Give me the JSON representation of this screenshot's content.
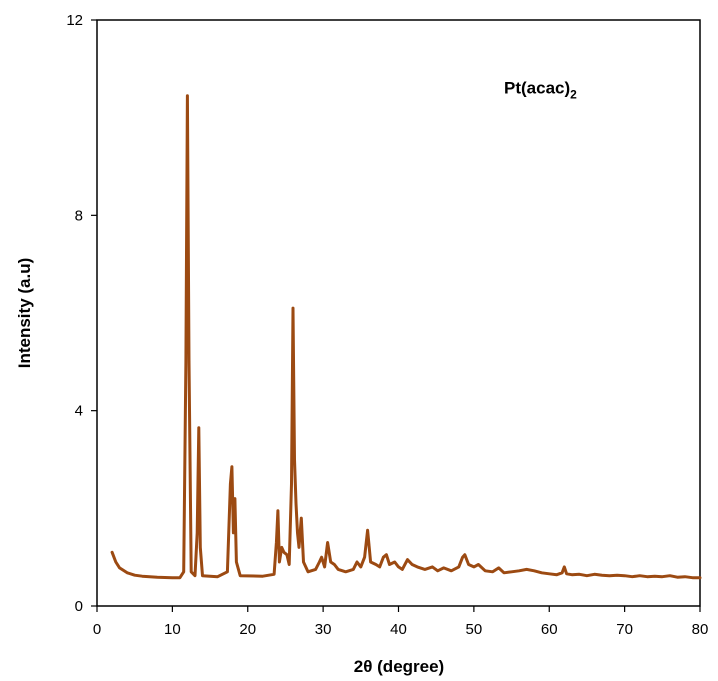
{
  "chart_data": {
    "type": "line",
    "title": "",
    "xlabel": "2θ (degree)",
    "ylabel": "Intensity (a.u)",
    "xlim": [
      0,
      80
    ],
    "ylim": [
      0,
      12
    ],
    "x_ticks": [
      "0",
      "10",
      "20",
      "30",
      "40",
      "50",
      "60",
      "70",
      "80"
    ],
    "y_ticks": [
      "0",
      "4",
      "8",
      "12"
    ],
    "grid": false,
    "legend": "none",
    "annotation": {
      "text": "Pt(acac)",
      "subscript": "2",
      "x": 54,
      "y": 10.5
    },
    "series": [
      {
        "color": "#9c4a12",
        "points": [
          [
            2.0,
            1.1
          ],
          [
            2.5,
            0.9
          ],
          [
            3.0,
            0.78
          ],
          [
            4.0,
            0.68
          ],
          [
            5.0,
            0.63
          ],
          [
            6.0,
            0.61
          ],
          [
            8.0,
            0.59
          ],
          [
            10.0,
            0.58
          ],
          [
            11.0,
            0.58
          ],
          [
            11.5,
            0.7
          ],
          [
            11.8,
            5.0
          ],
          [
            12.0,
            10.45
          ],
          [
            12.2,
            5.0
          ],
          [
            12.5,
            0.7
          ],
          [
            13.0,
            0.62
          ],
          [
            13.3,
            1.5
          ],
          [
            13.5,
            3.65
          ],
          [
            13.7,
            1.2
          ],
          [
            14.0,
            0.62
          ],
          [
            16.0,
            0.6
          ],
          [
            17.3,
            0.7
          ],
          [
            17.7,
            2.5
          ],
          [
            17.9,
            2.85
          ],
          [
            18.1,
            1.5
          ],
          [
            18.3,
            2.2
          ],
          [
            18.5,
            0.9
          ],
          [
            19.0,
            0.62
          ],
          [
            22.0,
            0.61
          ],
          [
            23.5,
            0.65
          ],
          [
            23.8,
            1.3
          ],
          [
            24.0,
            1.95
          ],
          [
            24.2,
            0.9
          ],
          [
            24.5,
            1.2
          ],
          [
            24.8,
            1.1
          ],
          [
            25.2,
            1.05
          ],
          [
            25.5,
            0.85
          ],
          [
            25.8,
            2.5
          ],
          [
            26.0,
            6.1
          ],
          [
            26.2,
            3.0
          ],
          [
            26.4,
            2.1
          ],
          [
            26.6,
            1.5
          ],
          [
            26.8,
            1.2
          ],
          [
            27.1,
            1.8
          ],
          [
            27.4,
            0.9
          ],
          [
            28.0,
            0.7
          ],
          [
            29.0,
            0.75
          ],
          [
            29.5,
            0.9
          ],
          [
            29.8,
            1.0
          ],
          [
            30.2,
            0.8
          ],
          [
            30.6,
            1.3
          ],
          [
            31.0,
            0.9
          ],
          [
            31.5,
            0.85
          ],
          [
            32.0,
            0.75
          ],
          [
            33.0,
            0.7
          ],
          [
            34.0,
            0.75
          ],
          [
            34.5,
            0.9
          ],
          [
            35.0,
            0.8
          ],
          [
            35.5,
            1.0
          ],
          [
            35.9,
            1.55
          ],
          [
            36.3,
            0.9
          ],
          [
            37.0,
            0.85
          ],
          [
            37.5,
            0.8
          ],
          [
            38.0,
            1.0
          ],
          [
            38.4,
            1.05
          ],
          [
            38.8,
            0.85
          ],
          [
            39.5,
            0.9
          ],
          [
            40.0,
            0.8
          ],
          [
            40.5,
            0.75
          ],
          [
            41.2,
            0.95
          ],
          [
            41.8,
            0.85
          ],
          [
            42.5,
            0.8
          ],
          [
            43.5,
            0.75
          ],
          [
            44.5,
            0.8
          ],
          [
            45.2,
            0.72
          ],
          [
            46.0,
            0.78
          ],
          [
            47.0,
            0.72
          ],
          [
            48.0,
            0.8
          ],
          [
            48.5,
            1.0
          ],
          [
            48.8,
            1.05
          ],
          [
            49.3,
            0.85
          ],
          [
            50.0,
            0.8
          ],
          [
            50.6,
            0.85
          ],
          [
            51.5,
            0.72
          ],
          [
            52.5,
            0.7
          ],
          [
            53.3,
            0.78
          ],
          [
            54.0,
            0.68
          ],
          [
            55.0,
            0.7
          ],
          [
            56.0,
            0.72
          ],
          [
            57.0,
            0.75
          ],
          [
            58.0,
            0.72
          ],
          [
            59.0,
            0.68
          ],
          [
            60.0,
            0.66
          ],
          [
            61.0,
            0.64
          ],
          [
            61.7,
            0.68
          ],
          [
            62.0,
            0.8
          ],
          [
            62.3,
            0.66
          ],
          [
            63.0,
            0.64
          ],
          [
            64.0,
            0.65
          ],
          [
            65.0,
            0.62
          ],
          [
            66.0,
            0.65
          ],
          [
            67.0,
            0.63
          ],
          [
            68.0,
            0.62
          ],
          [
            69.0,
            0.63
          ],
          [
            70.0,
            0.62
          ],
          [
            71.0,
            0.6
          ],
          [
            72.0,
            0.62
          ],
          [
            73.0,
            0.6
          ],
          [
            74.0,
            0.61
          ],
          [
            75.0,
            0.6
          ],
          [
            76.0,
            0.62
          ],
          [
            77.0,
            0.59
          ],
          [
            78.0,
            0.6
          ],
          [
            79.0,
            0.58
          ],
          [
            80.0,
            0.58
          ]
        ]
      }
    ]
  }
}
